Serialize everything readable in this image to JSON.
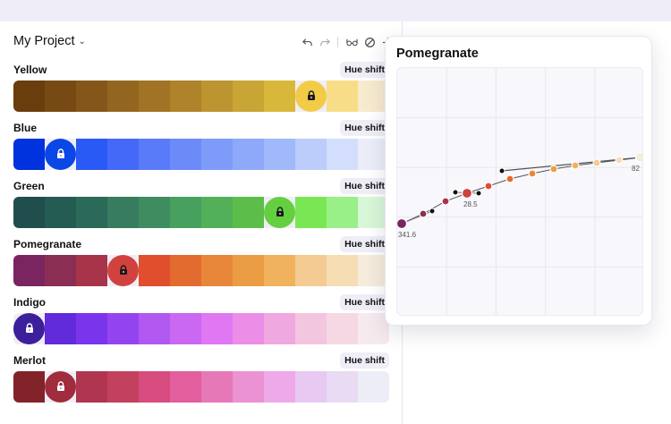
{
  "project": {
    "title": "My Project",
    "chevron": "chevron-down-icon"
  },
  "toolbar": {
    "icons": [
      "undo-icon",
      "redo-icon",
      "glasses-icon",
      "disable-icon",
      "plus-icon"
    ]
  },
  "palettes": [
    {
      "name": "Yellow",
      "button": "Hue shift",
      "locked_index": 9,
      "lock_color": "#1a1a1a",
      "swatches": [
        "#6a3d0d",
        "#784a13",
        "#85561a",
        "#936620",
        "#a07424",
        "#ae832a",
        "#bc9430",
        "#c9a535",
        "#d9b73a",
        "#f2cb47",
        "#f7de86",
        "#f7ebcf"
      ]
    },
    {
      "name": "Blue",
      "button": "Hue shift",
      "locked_index": 1,
      "lock_color": "#ffffff",
      "swatches": [
        "#0033dd",
        "#0a47e6",
        "#2a5af5",
        "#4469f8",
        "#5a7bf9",
        "#6c8bf9",
        "#7e9bf9",
        "#8ea9fa",
        "#a0b9fb",
        "#bcccfb",
        "#d2defb",
        "#ebedf8"
      ]
    },
    {
      "name": "Green",
      "button": "Hue shift",
      "locked_index": 8,
      "lock_color": "#1a1a1a",
      "swatches": [
        "#1f4e4d",
        "#245b53",
        "#2b6a59",
        "#377c5f",
        "#3f8c60",
        "#48a05f",
        "#52b058",
        "#5cbd4b",
        "#64cf3f",
        "#79e754",
        "#9af088",
        "#d8f7d8"
      ]
    },
    {
      "name": "Pomegranate",
      "button": "Hue shift",
      "locked_index": 3,
      "lock_color": "#1a1a1a",
      "swatches": [
        "#7a2560",
        "#8b2e54",
        "#a8344a",
        "#d1423e",
        "#e04e2e",
        "#e36b30",
        "#e8873a",
        "#eb9d44",
        "#f0b25d",
        "#f3cb93",
        "#f6ddb4",
        "#f5ecdc"
      ]
    },
    {
      "name": "Indigo",
      "button": "Hue shift",
      "locked_index": 0,
      "lock_color": "#ffffff",
      "swatches": [
        "#3d1f9b",
        "#612adb",
        "#7a34ec",
        "#9444ef",
        "#b058f0",
        "#ca67f3",
        "#df78f2",
        "#ec8ee7",
        "#f0a8e0",
        "#f3c6df",
        "#f5d8e3",
        "#f6eaee"
      ]
    },
    {
      "name": "Merlot",
      "button": "Hue shift",
      "locked_index": 1,
      "lock_color": "#ffffff",
      "swatches": [
        "#812328",
        "#a02c3e",
        "#b03650",
        "#c3405e",
        "#d84b7e",
        "#e25e9c",
        "#e678b7",
        "#eb92d2",
        "#eda9ea",
        "#e8c9f2",
        "#e8dbf3",
        "#ededf8"
      ]
    }
  ],
  "popup": {
    "title": "Pomegranate",
    "labels": {
      "start": "341.6",
      "locked": "28.5",
      "end": "82"
    }
  },
  "chart_data": {
    "type": "scatter",
    "title": "Pomegranate",
    "xlabel": "",
    "ylabel": "",
    "grid": true,
    "legend": "none",
    "points": [
      {
        "x": 5,
        "y": 104,
        "color": "#7a2560",
        "size": "large",
        "label": "341.6"
      },
      {
        "x": 29,
        "y": 115,
        "color": "#8b2e54"
      },
      {
        "x": 54,
        "y": 129,
        "color": "#a8344a"
      },
      {
        "x": 78,
        "y": 138,
        "color": "#d1423e",
        "size": "large",
        "label": "28.5"
      },
      {
        "x": 102,
        "y": 146,
        "color": "#e04e2e"
      },
      {
        "x": 126,
        "y": 154,
        "color": "#e36b30"
      },
      {
        "x": 151,
        "y": 160,
        "color": "#e8873a"
      },
      {
        "x": 175,
        "y": 165,
        "color": "#eb9d44"
      },
      {
        "x": 199,
        "y": 169,
        "color": "#f0b25d"
      },
      {
        "x": 223,
        "y": 172,
        "color": "#f3cb93"
      },
      {
        "x": 248,
        "y": 175,
        "color": "#f6ddb4"
      },
      {
        "x": 272,
        "y": 178,
        "color": "#f5ecdc",
        "size": "large",
        "label": "82"
      }
    ],
    "handles": [
      {
        "x": 39,
        "y": 118
      },
      {
        "x": 65,
        "y": 139
      },
      {
        "x": 91,
        "y": 138
      },
      {
        "x": 117,
        "y": 163
      }
    ],
    "xlim": [
      0,
      276
    ],
    "ylim": [
      0,
      278
    ]
  }
}
